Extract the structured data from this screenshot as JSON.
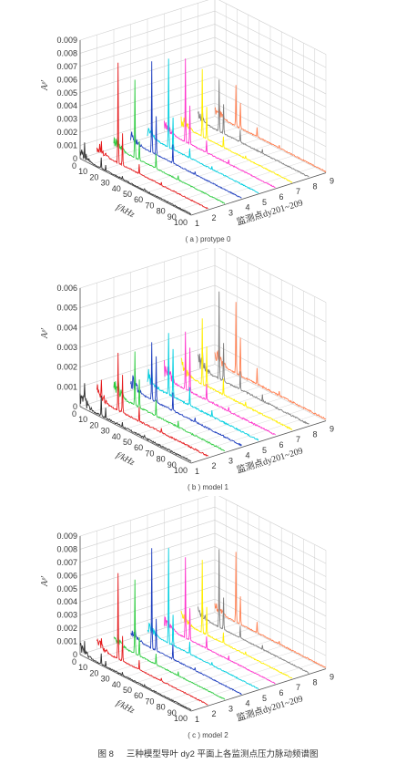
{
  "figure": {
    "number": "图 8",
    "caption": "三种模型导叶 dy2 平面上各监测点压力脉动频谱图"
  },
  "colors": {
    "series": [
      "#333333",
      "#e41a1c",
      "#2ecc40",
      "#1f3fbf",
      "#00cfe0",
      "#ff33cc",
      "#ffee00",
      "#7f7f7f",
      "#ff7f50"
    ],
    "axis": "#555555",
    "grid": "#cfcfcf"
  },
  "chart_data": [
    {
      "type": "line",
      "subplot": "(a) protype 0",
      "caption": "( a ) protype 0",
      "zlabel": "Aᵖ'",
      "xlabel": "f/kHz",
      "ylabel": "监测点dy201~209",
      "x_ticks": [
        "0",
        "10",
        "20",
        "30",
        "40",
        "50",
        "60",
        "70",
        "80",
        "90",
        "100"
      ],
      "y_ticks": [
        "1",
        "2",
        "3",
        "4",
        "5",
        "6",
        "7",
        "8",
        "9"
      ],
      "z_ticks": [
        "0",
        "0.001",
        "0.002",
        "0.003",
        "0.004",
        "0.005",
        "0.006",
        "0.007",
        "0.008",
        "0.009"
      ],
      "xlim": [
        0,
        100
      ],
      "zlim": [
        0,
        0.009
      ],
      "series": [
        {
          "point": 1,
          "peaks": [
            [
              4,
              0.0014
            ],
            [
              19,
              0.0009
            ],
            [
              23,
              0.0005
            ],
            [
              38,
              0.0003
            ],
            [
              58,
              0.0002
            ]
          ]
        },
        {
          "point": 2,
          "peaks": [
            [
              4,
              0.0011
            ],
            [
              19,
              0.0077
            ],
            [
              23,
              0.0025
            ],
            [
              38,
              0.0008
            ],
            [
              58,
              0.0003
            ]
          ]
        },
        {
          "point": 3,
          "peaks": [
            [
              4,
              0.001
            ],
            [
              19,
              0.006
            ],
            [
              23,
              0.0015
            ],
            [
              38,
              0.0012
            ],
            [
              58,
              0.0004
            ]
          ]
        },
        {
          "point": 4,
          "peaks": [
            [
              4,
              0.0011
            ],
            [
              19,
              0.007
            ],
            [
              23,
              0.003
            ],
            [
              38,
              0.0015
            ],
            [
              58,
              0.0003
            ]
          ]
        },
        {
          "point": 5,
          "peaks": [
            [
              4,
              0.001
            ],
            [
              19,
              0.0068
            ],
            [
              23,
              0.0025
            ],
            [
              38,
              0.0008
            ],
            [
              58,
              0.0003
            ]
          ]
        },
        {
          "point": 6,
          "peaks": [
            [
              4,
              0.0011
            ],
            [
              19,
              0.0064
            ],
            [
              23,
              0.003
            ],
            [
              38,
              0.001
            ],
            [
              58,
              0.0004
            ]
          ]
        },
        {
          "point": 7,
          "peaks": [
            [
              4,
              0.0012
            ],
            [
              19,
              0.0052
            ],
            [
              23,
              0.0025
            ],
            [
              38,
              0.0009
            ],
            [
              58,
              0.0003
            ]
          ]
        },
        {
          "point": 8,
          "peaks": [
            [
              4,
              0.0012
            ],
            [
              19,
              0.004
            ],
            [
              23,
              0.0023
            ],
            [
              38,
              0.001
            ],
            [
              58,
              0.0004
            ]
          ]
        },
        {
          "point": 9,
          "peaks": [
            [
              4,
              0.0012
            ],
            [
              19,
              0.0032
            ],
            [
              23,
              0.002
            ],
            [
              38,
              0.0008
            ],
            [
              58,
              0.0003
            ]
          ]
        }
      ]
    },
    {
      "type": "line",
      "subplot": "(b) model 1",
      "caption": "( b ) model 1",
      "zlabel": "Aᵖ'",
      "xlabel": "f/kHz",
      "ylabel": "监测点dy201~209",
      "x_ticks": [
        "0",
        "10",
        "20",
        "30",
        "40",
        "50",
        "60",
        "70",
        "80",
        "90",
        "100"
      ],
      "y_ticks": [
        "1",
        "2",
        "3",
        "4",
        "5",
        "6",
        "7",
        "8",
        "9"
      ],
      "z_ticks": [
        "0",
        "0.001",
        "0.002",
        "0.003",
        "0.004",
        "0.005",
        "0.006"
      ],
      "xlim": [
        0,
        100
      ],
      "zlim": [
        0,
        0.006
      ],
      "series": [
        {
          "point": 1,
          "peaks": [
            [
              4,
              0.0013
            ],
            [
              19,
              0.0011
            ],
            [
              23,
              0.0006
            ],
            [
              38,
              0.0003
            ],
            [
              58,
              0.0002
            ]
          ]
        },
        {
          "point": 2,
          "peaks": [
            [
              4,
              0.0012
            ],
            [
              19,
              0.003
            ],
            [
              23,
              0.002
            ],
            [
              38,
              0.0008
            ],
            [
              58,
              0.0003
            ]
          ]
        },
        {
          "point": 3,
          "peaks": [
            [
              4,
              0.001
            ],
            [
              19,
              0.0028
            ],
            [
              23,
              0.0015
            ],
            [
              38,
              0.0009
            ],
            [
              58,
              0.0004
            ]
          ]
        },
        {
          "point": 4,
          "peaks": [
            [
              4,
              0.0011
            ],
            [
              19,
              0.003
            ],
            [
              23,
              0.0024
            ],
            [
              38,
              0.001
            ],
            [
              58,
              0.0003
            ]
          ]
        },
        {
          "point": 5,
          "peaks": [
            [
              4,
              0.0012
            ],
            [
              19,
              0.0032
            ],
            [
              23,
              0.0025
            ],
            [
              38,
              0.001
            ],
            [
              58,
              0.0004
            ]
          ]
        },
        {
          "point": 6,
          "peaks": [
            [
              4,
              0.0011
            ],
            [
              19,
              0.003
            ],
            [
              23,
              0.0023
            ],
            [
              38,
              0.0009
            ],
            [
              58,
              0.0003
            ]
          ]
        },
        {
          "point": 7,
          "peaks": [
            [
              4,
              0.0013
            ],
            [
              19,
              0.0034
            ],
            [
              23,
              0.0021
            ],
            [
              38,
              0.0009
            ],
            [
              58,
              0.0003
            ]
          ]
        },
        {
          "point": 8,
          "peaks": [
            [
              4,
              0.0012
            ],
            [
              19,
              0.0045
            ],
            [
              23,
              0.002
            ],
            [
              38,
              0.001
            ],
            [
              58,
              0.0004
            ]
          ]
        },
        {
          "point": 9,
          "peaks": [
            [
              4,
              0.0013
            ],
            [
              19,
              0.0037
            ],
            [
              23,
              0.002
            ],
            [
              38,
              0.0009
            ],
            [
              58,
              0.0003
            ]
          ]
        }
      ]
    },
    {
      "type": "line",
      "subplot": "(c) model 2",
      "caption": "( c ) model 2",
      "zlabel": "Aᵖ'",
      "xlabel": "f/kHz",
      "ylabel": "监测点dy201~209",
      "x_ticks": [
        "0",
        "10",
        "20",
        "30",
        "40",
        "50",
        "60",
        "70",
        "80",
        "90",
        "100"
      ],
      "y_ticks": [
        "1",
        "2",
        "3",
        "4",
        "5",
        "6",
        "7",
        "8",
        "9"
      ],
      "z_ticks": [
        "0",
        "0.001",
        "0.002",
        "0.003",
        "0.004",
        "0.005",
        "0.006",
        "0.007",
        "0.008",
        "0.009"
      ],
      "xlim": [
        0,
        100
      ],
      "zlim": [
        0,
        0.009
      ],
      "series": [
        {
          "point": 1,
          "peaks": [
            [
              4,
              0.0012
            ],
            [
              19,
              0.0009
            ],
            [
              23,
              0.0005
            ],
            [
              38,
              0.0003
            ],
            [
              58,
              0.0002
            ]
          ]
        },
        {
          "point": 2,
          "peaks": [
            [
              4,
              0.001
            ],
            [
              19,
              0.0066
            ],
            [
              23,
              0.002
            ],
            [
              38,
              0.0008
            ],
            [
              58,
              0.0003
            ]
          ]
        },
        {
          "point": 3,
          "peaks": [
            [
              4,
              0.0009
            ],
            [
              19,
              0.0057
            ],
            [
              23,
              0.0015
            ],
            [
              38,
              0.0009
            ],
            [
              58,
              0.0004
            ]
          ]
        },
        {
          "point": 4,
          "peaks": [
            [
              4,
              0.001
            ],
            [
              19,
              0.0077
            ],
            [
              23,
              0.0025
            ],
            [
              38,
              0.0012
            ],
            [
              58,
              0.0003
            ]
          ]
        },
        {
          "point": 5,
          "peaks": [
            [
              4,
              0.001
            ],
            [
              19,
              0.0073
            ],
            [
              23,
              0.0024
            ],
            [
              38,
              0.001
            ],
            [
              58,
              0.0003
            ]
          ]
        },
        {
          "point": 6,
          "peaks": [
            [
              4,
              0.0011
            ],
            [
              19,
              0.0062
            ],
            [
              23,
              0.0025
            ],
            [
              38,
              0.001
            ],
            [
              58,
              0.0004
            ]
          ]
        },
        {
          "point": 7,
          "peaks": [
            [
              4,
              0.0011
            ],
            [
              19,
              0.0056
            ],
            [
              23,
              0.0022
            ],
            [
              38,
              0.0009
            ],
            [
              58,
              0.0003
            ]
          ]
        },
        {
          "point": 8,
          "peaks": [
            [
              4,
              0.0012
            ],
            [
              19,
              0.006
            ],
            [
              23,
              0.0025
            ],
            [
              38,
              0.001
            ],
            [
              58,
              0.0004
            ]
          ]
        },
        {
          "point": 9,
          "peaks": [
            [
              4,
              0.0011
            ],
            [
              19,
              0.0054
            ],
            [
              23,
              0.0022
            ],
            [
              38,
              0.0009
            ],
            [
              58,
              0.0003
            ]
          ]
        }
      ]
    }
  ]
}
